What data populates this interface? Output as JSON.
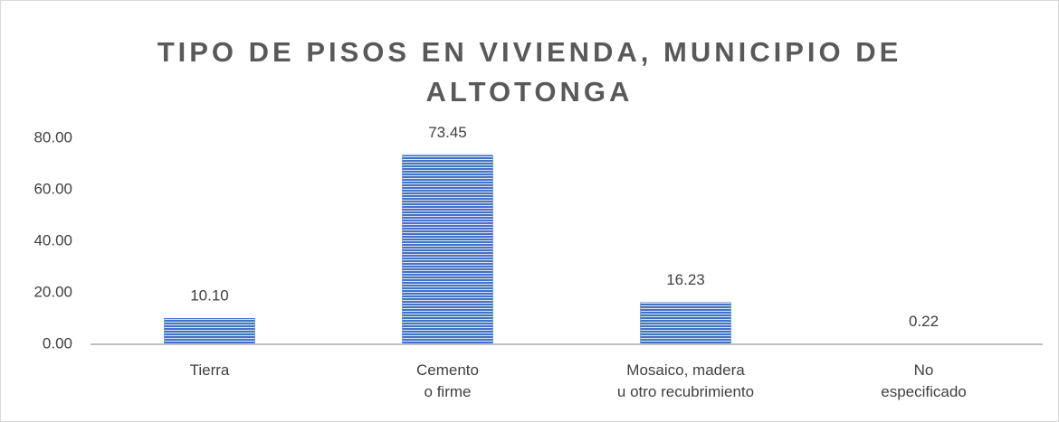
{
  "chart_data": {
    "type": "bar",
    "title": "TIPO DE PISOS EN VIVIENDA, MUNICIPIO DE ALTOTONGA",
    "categories": [
      "Tierra",
      "Cemento\no firme",
      "Mosaico, madera\nu otro recubrimiento",
      "No\nespecificado"
    ],
    "values": [
      10.1,
      73.45,
      16.23,
      0.22
    ],
    "value_labels": [
      "10.10",
      "73.45",
      "16.23",
      "0.22"
    ],
    "color": "#4472c4",
    "ylim": [
      0,
      80
    ],
    "yticks": [
      {
        "value": 0,
        "label": "0.00"
      },
      {
        "value": 20,
        "label": "20.00"
      },
      {
        "value": 40,
        "label": "40.00"
      },
      {
        "value": 60,
        "label": "60.00"
      },
      {
        "value": 80,
        "label": "80.00"
      }
    ],
    "grid": false
  }
}
